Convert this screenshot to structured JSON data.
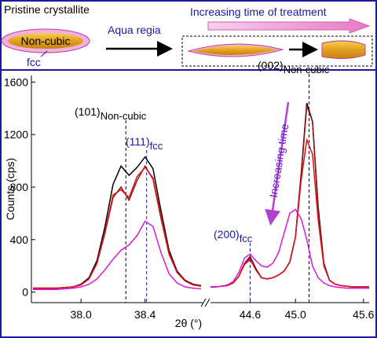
{
  "schematic": {
    "pristine": "Pristine crystallite",
    "core": "Non-cubic",
    "shell": "fcc",
    "reagent": "Aqua regia",
    "process": "Increasing time of treatment"
  },
  "chart_data": [
    {
      "type": "line",
      "ylabel": "Counts (cps)",
      "xlabel": "2θ (°)",
      "xlim": [
        37.69,
        38.76
      ],
      "ylim": [
        -80,
        1650
      ],
      "xticks": [
        {
          "value": 38,
          "label": "38.0"
        },
        38.4
      ],
      "yticks": [
        0,
        400,
        800,
        1200,
        1600
      ],
      "x": [
        37.7,
        37.75,
        37.8,
        37.85,
        37.9,
        37.95,
        38.0,
        38.05,
        38.1,
        38.15,
        38.2,
        38.25,
        38.3,
        38.35,
        38.4,
        38.45,
        38.5,
        38.55,
        38.6,
        38.65,
        38.7,
        38.75
      ],
      "series": [
        {
          "color": "#000000",
          "values": [
            30,
            30,
            30,
            30,
            35,
            40,
            60,
            110,
            240,
            500,
            820,
            960,
            890,
            950,
            1030,
            940,
            620,
            320,
            160,
            90,
            60,
            50
          ]
        },
        {
          "color": "#8b1a1a",
          "values": [
            30,
            30,
            30,
            30,
            35,
            40,
            55,
            100,
            220,
            450,
            720,
            800,
            700,
            850,
            960,
            860,
            560,
            290,
            150,
            85,
            55,
            45
          ]
        },
        {
          "color": "#e0101a",
          "values": [
            30,
            30,
            30,
            30,
            35,
            40,
            55,
            100,
            220,
            460,
            740,
            780,
            720,
            880,
            950,
            870,
            580,
            300,
            150,
            85,
            55,
            45
          ]
        },
        {
          "color": "#d81ad8",
          "values": [
            20,
            20,
            20,
            20,
            25,
            30,
            40,
            60,
            100,
            170,
            250,
            320,
            360,
            430,
            540,
            500,
            300,
            140,
            70,
            40,
            30,
            25
          ]
        }
      ],
      "annotations": [
        {
          "text": "(101)",
          "sub": "Non-cubic",
          "x": 38.28,
          "color": "#000000"
        },
        {
          "text": "(111)",
          "sub": "fcc",
          "x": 38.41,
          "color": "#1a1aa0"
        }
      ]
    },
    {
      "type": "line",
      "xlim": [
        44.25,
        45.65
      ],
      "ylim": [
        -80,
        1650
      ],
      "xticks": [
        44.6,
        {
          "value": 45,
          "label": "45.0"
        },
        45.6
      ],
      "x": [
        44.25,
        44.3,
        44.35,
        44.4,
        44.45,
        44.5,
        44.55,
        44.6,
        44.65,
        44.7,
        44.75,
        44.8,
        44.85,
        44.9,
        44.95,
        45.0,
        45.05,
        45.1,
        45.15,
        45.2,
        45.25,
        45.3,
        45.35,
        45.4,
        45.45,
        45.5,
        45.55,
        45.6,
        45.65
      ],
      "series": [
        {
          "color": "#000000",
          "values": [
            40,
            40,
            45,
            50,
            70,
            120,
            220,
            270,
            180,
            110,
            100,
            110,
            130,
            160,
            230,
            420,
            900,
            1440,
            1300,
            650,
            220,
            90,
            60,
            50,
            45,
            40,
            40,
            40,
            40
          ]
        },
        {
          "color": "#8b1a1a",
          "values": [
            40,
            40,
            45,
            50,
            70,
            120,
            210,
            250,
            170,
            110,
            100,
            110,
            130,
            160,
            230,
            420,
            880,
            1420,
            1300,
            620,
            210,
            90,
            60,
            50,
            45,
            40,
            40,
            40,
            40
          ]
        },
        {
          "color": "#e0101a",
          "values": [
            40,
            40,
            45,
            50,
            70,
            120,
            220,
            260,
            170,
            110,
            100,
            110,
            130,
            160,
            230,
            420,
            850,
            1160,
            1050,
            550,
            200,
            90,
            60,
            50,
            45,
            40,
            40,
            40,
            40
          ]
        },
        {
          "color": "#d81ad8",
          "values": [
            40,
            40,
            45,
            55,
            80,
            150,
            260,
            290,
            240,
            200,
            190,
            220,
            300,
            450,
            600,
            630,
            560,
            400,
            200,
            110,
            70,
            50,
            40,
            35,
            30,
            30,
            30,
            30,
            30
          ]
        }
      ],
      "annotations": [
        {
          "text": "(200)",
          "sub": "fcc",
          "x": 44.6,
          "color": "#1a1aa0"
        },
        {
          "text": "(002)",
          "sub": "Non-cubic",
          "x": 45.12,
          "color": "#000000"
        },
        {
          "text": "Increasing time",
          "color": "#6a1ad0"
        }
      ]
    }
  ]
}
